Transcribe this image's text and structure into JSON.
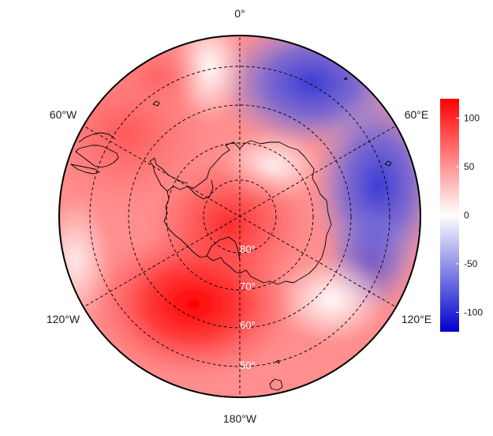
{
  "map": {
    "projection": "south-polar-stereographic",
    "longitude_labels": [
      "0°",
      "60°E",
      "120°E",
      "180°W",
      "120°W",
      "60°W"
    ],
    "latitude_labels": [
      "80°",
      "70°",
      "60°",
      "50°"
    ],
    "colors": {
      "positive": "#ff0000",
      "negative": "#0000cc",
      "neutral": "#ffffff",
      "coastline": "#000000",
      "graticule": "#000000"
    }
  },
  "colorbar": {
    "min": -120,
    "max": 120,
    "ticks": [
      "100",
      "50",
      "0",
      "-50",
      "-100"
    ],
    "tick_values": [
      100,
      50,
      0,
      -50,
      -100
    ]
  }
}
